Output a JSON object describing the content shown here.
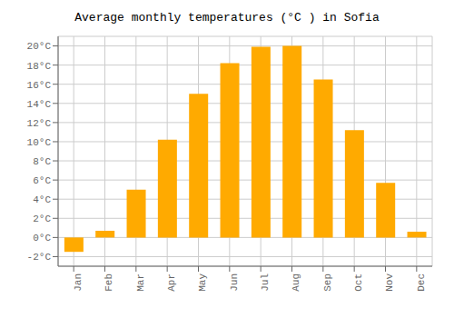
{
  "chart_data": {
    "type": "bar",
    "title": "Average monthly temperatures (°C ) in Sofia",
    "categories": [
      "Jan",
      "Feb",
      "Mar",
      "Apr",
      "May",
      "Jun",
      "Jul",
      "Aug",
      "Sep",
      "Oct",
      "Nov",
      "Dec"
    ],
    "values": [
      -1.5,
      0.7,
      5.0,
      10.2,
      15.0,
      18.2,
      19.9,
      20.0,
      16.5,
      11.2,
      5.7,
      0.6
    ],
    "color": "#FFAA00",
    "ylim": [
      -3,
      21
    ],
    "yticks": [
      {
        "value": -2,
        "label": "-2°C"
      },
      {
        "value": 0,
        "label": "0°C"
      },
      {
        "value": 2,
        "label": "2°C"
      },
      {
        "value": 4,
        "label": "4°C"
      },
      {
        "value": 6,
        "label": "6°C"
      },
      {
        "value": 8,
        "label": "8°C"
      },
      {
        "value": 10,
        "label": "10°C"
      },
      {
        "value": 12,
        "label": "12°C"
      },
      {
        "value": 14,
        "label": "14°C"
      },
      {
        "value": 16,
        "label": "16°C"
      },
      {
        "value": 18,
        "label": "18°C"
      },
      {
        "value": 20,
        "label": "20°C"
      }
    ],
    "grid": true
  }
}
